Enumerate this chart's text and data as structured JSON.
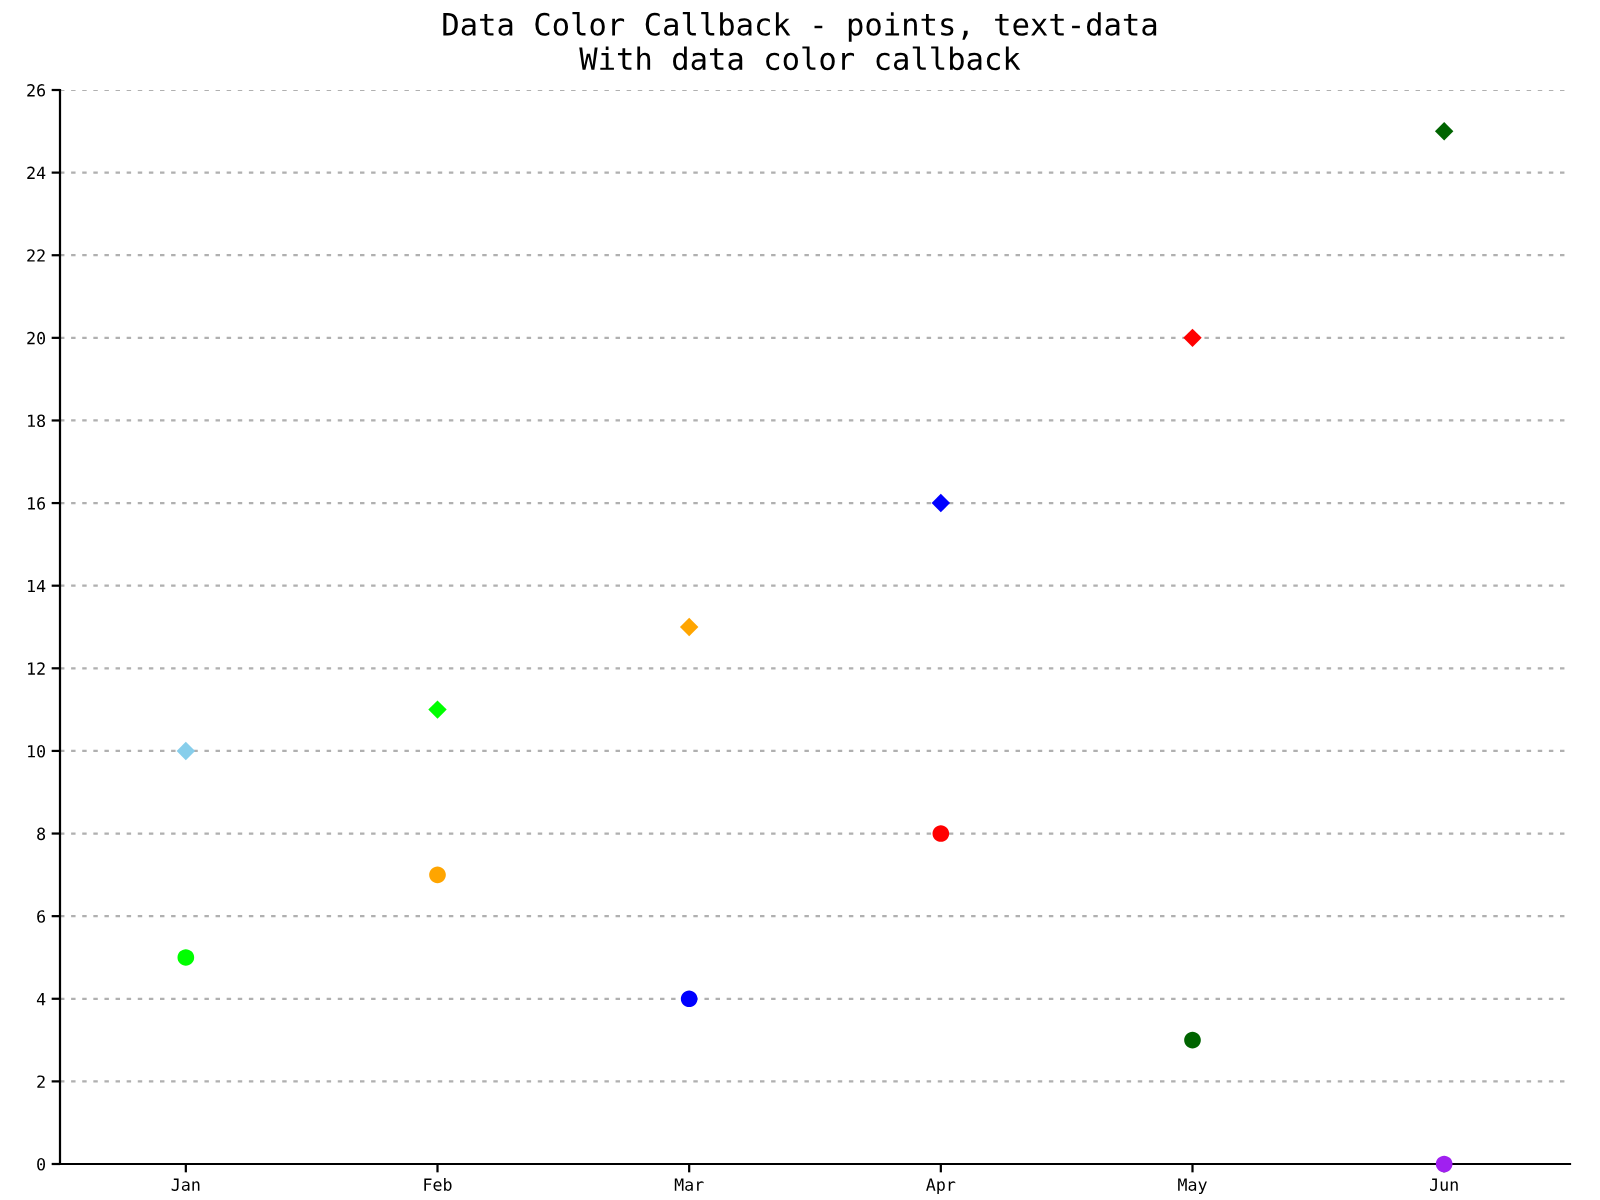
{
  "chart_data": {
    "type": "scatter",
    "title": "Data Color Callback - points, text-data\nWith data color callback",
    "categories": [
      "Jan",
      "Feb",
      "Mar",
      "Apr",
      "May",
      "Jun"
    ],
    "series": [
      {
        "marker": "diamond",
        "colors": [
          "#87ceeb",
          "#00ff00",
          "#ffa500",
          "#0000ff",
          "#ff0000",
          "#006400"
        ],
        "values": [
          10,
          11,
          13,
          16,
          20,
          25
        ]
      },
      {
        "marker": "circle",
        "colors": [
          "#00ff00",
          "#ffa500",
          "#0000ff",
          "#ff0000",
          "#006400",
          "#a020f0"
        ],
        "values": [
          5,
          7,
          4,
          8,
          3,
          0
        ]
      }
    ],
    "ylim": [
      0,
      26
    ],
    "yticks": [
      0,
      2,
      4,
      6,
      8,
      10,
      12,
      14,
      16,
      18,
      20,
      22,
      24,
      26
    ],
    "grid": "y"
  }
}
